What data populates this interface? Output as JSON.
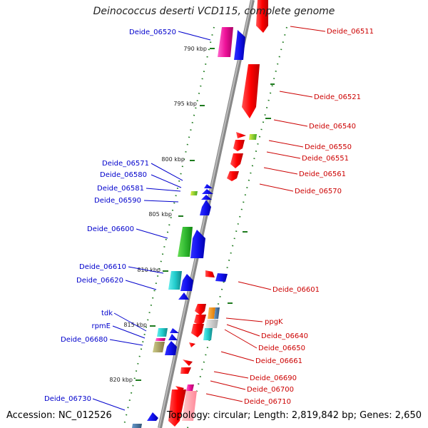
{
  "title": "Deinococcus deserti VCD115, complete genome",
  "footer": {
    "accession": "Accession: NC_012526",
    "topology": "Topology: circular; Length: 2,819,842 bp; Genes: 2,650"
  },
  "colors": {
    "label_left": "#0000cc",
    "label_right": "#cc0000",
    "backbone": "#777777",
    "tick": "#1e7b1e"
  },
  "scale_labels": [
    "790 kbp",
    "795 kbp",
    "800 kbp",
    "805 kbp",
    "810 kbp",
    "815 kbp",
    "820 kbp"
  ],
  "left_labels": [
    "Deide_06520",
    "Deide_06571",
    "Deide_06580",
    "Deide_06581",
    "Deide_06590",
    "Deide_06600",
    "Deide_06610",
    "Deide_06620",
    "tdk",
    "rpmE",
    "Deide_06680",
    "Deide_06730"
  ],
  "right_labels": [
    "Deide_06511",
    "Deide_06521",
    "Deide_06540",
    "Deide_06550",
    "Deide_06551",
    "Deide_06561",
    "Deide_06570",
    "Deide_06601",
    "ppgK",
    "Deide_06640",
    "Deide_06650",
    "Deide_06661",
    "Deide_06690",
    "Deide_06700",
    "Deide_06710"
  ]
}
